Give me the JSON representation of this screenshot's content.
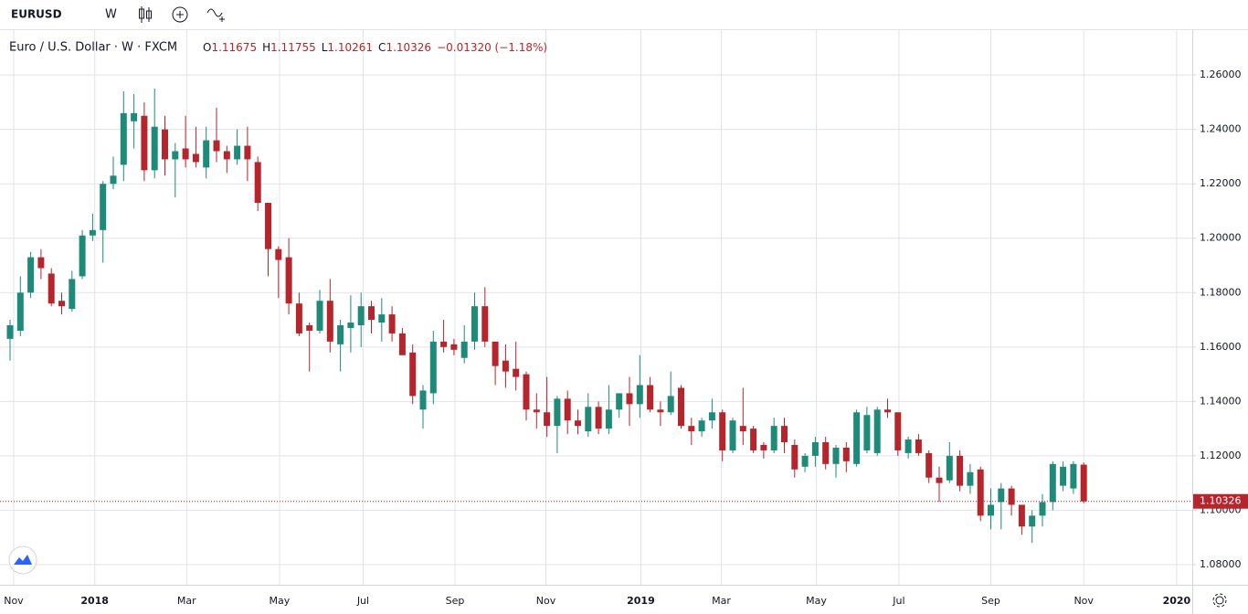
{
  "toolbar": {
    "symbol": "EURUSD",
    "interval": "W"
  },
  "chart_data": {
    "type": "candlestick",
    "title": "Euro / U.S. Dollar · W · FXCM",
    "ohlc_legend": [
      {
        "key": "O",
        "value": 1.11675
      },
      {
        "key": "H",
        "value": 1.11755
      },
      {
        "key": "L",
        "value": 1.10261
      },
      {
        "key": "C",
        "value": 1.10326
      }
    ],
    "change": "−0.01320 (−1.18%)",
    "up_color": "#1e8a78",
    "down_color": "#b5252b",
    "open": [
      1.163,
      1.166,
      1.18,
      1.193,
      1.187,
      1.177,
      1.174,
      1.186,
      1.201,
      1.203,
      1.22,
      1.227,
      1.243,
      1.245,
      1.225,
      1.24,
      1.229,
      1.233,
      1.231,
      1.226,
      1.236,
      1.232,
      1.229,
      1.234,
      1.228,
      1.213,
      1.196,
      1.193,
      1.176,
      1.168,
      1.166,
      1.177,
      1.161,
      1.167,
      1.168,
      1.175,
      1.169,
      1.172,
      1.165,
      1.158,
      1.137,
      1.143,
      1.162,
      1.161,
      1.156,
      1.162,
      1.175,
      1.162,
      1.155,
      1.152,
      1.15,
      1.137,
      1.136,
      1.131,
      1.141,
      1.133,
      1.129,
      1.138,
      1.13,
      1.137,
      1.143,
      1.139,
      1.146,
      1.137,
      1.136,
      1.145,
      1.131,
      1.129,
      1.133,
      1.136,
      1.122,
      1.131,
      1.13,
      1.124,
      1.122,
      1.131,
      1.124,
      1.116,
      1.12,
      1.125,
      1.117,
      1.123,
      1.117,
      1.122,
      1.121,
      1.137,
      1.136,
      1.121,
      1.126,
      1.121,
      1.112,
      1.111,
      1.12,
      1.109,
      1.115,
      1.098,
      1.103,
      1.108,
      1.102,
      1.094,
      1.098,
      1.103,
      1.109,
      1.108,
      1.11675
    ],
    "high": [
      1.17,
      1.186,
      1.195,
      1.196,
      1.189,
      1.18,
      1.188,
      1.203,
      1.209,
      1.221,
      1.23,
      1.254,
      1.253,
      1.25,
      1.255,
      1.245,
      1.235,
      1.245,
      1.241,
      1.241,
      1.248,
      1.234,
      1.24,
      1.241,
      1.23,
      1.213,
      1.197,
      1.2,
      1.18,
      1.169,
      1.181,
      1.185,
      1.17,
      1.179,
      1.18,
      1.177,
      1.178,
      1.175,
      1.167,
      1.161,
      1.146,
      1.166,
      1.17,
      1.163,
      1.168,
      1.18,
      1.182,
      1.162,
      1.161,
      1.162,
      1.151,
      1.143,
      1.149,
      1.142,
      1.144,
      1.137,
      1.143,
      1.14,
      1.146,
      1.143,
      1.149,
      1.157,
      1.149,
      1.14,
      1.151,
      1.146,
      1.134,
      1.134,
      1.141,
      1.137,
      1.134,
      1.145,
      1.131,
      1.125,
      1.134,
      1.134,
      1.126,
      1.121,
      1.127,
      1.127,
      1.124,
      1.125,
      1.137,
      1.138,
      1.138,
      1.141,
      1.136,
      1.127,
      1.128,
      1.122,
      1.116,
      1.125,
      1.122,
      1.117,
      1.116,
      1.108,
      1.11,
      1.109,
      1.102,
      1.1,
      1.106,
      1.118,
      1.118,
      1.118,
      1.11755
    ],
    "low": [
      1.155,
      1.164,
      1.178,
      1.185,
      1.175,
      1.172,
      1.173,
      1.185,
      1.199,
      1.191,
      1.218,
      1.221,
      1.233,
      1.221,
      1.222,
      1.223,
      1.215,
      1.226,
      1.226,
      1.222,
      1.228,
      1.224,
      1.227,
      1.221,
      1.21,
      1.186,
      1.178,
      1.172,
      1.164,
      1.151,
      1.165,
      1.158,
      1.151,
      1.158,
      1.16,
      1.165,
      1.162,
      1.162,
      1.157,
      1.139,
      1.13,
      1.139,
      1.158,
      1.157,
      1.154,
      1.159,
      1.16,
      1.146,
      1.145,
      1.144,
      1.133,
      1.13,
      1.127,
      1.121,
      1.128,
      1.128,
      1.127,
      1.128,
      1.128,
      1.134,
      1.131,
      1.134,
      1.136,
      1.131,
      1.135,
      1.13,
      1.124,
      1.127,
      1.13,
      1.118,
      1.121,
      1.124,
      1.121,
      1.119,
      1.121,
      1.121,
      1.112,
      1.114,
      1.116,
      1.115,
      1.112,
      1.114,
      1.116,
      1.121,
      1.12,
      1.134,
      1.12,
      1.119,
      1.12,
      1.11,
      1.103,
      1.11,
      1.107,
      1.106,
      1.096,
      1.093,
      1.093,
      1.098,
      1.091,
      1.088,
      1.094,
      1.1,
      1.107,
      1.106,
      1.10261
    ],
    "close": [
      1.168,
      1.18,
      1.193,
      1.189,
      1.176,
      1.175,
      1.185,
      1.201,
      1.203,
      1.22,
      1.223,
      1.246,
      1.246,
      1.225,
      1.241,
      1.229,
      1.232,
      1.229,
      1.228,
      1.236,
      1.232,
      1.229,
      1.234,
      1.229,
      1.213,
      1.196,
      1.192,
      1.176,
      1.165,
      1.166,
      1.177,
      1.162,
      1.168,
      1.169,
      1.175,
      1.17,
      1.172,
      1.165,
      1.157,
      1.142,
      1.144,
      1.162,
      1.16,
      1.159,
      1.162,
      1.175,
      1.162,
      1.153,
      1.151,
      1.149,
      1.137,
      1.136,
      1.131,
      1.141,
      1.133,
      1.131,
      1.138,
      1.13,
      1.137,
      1.143,
      1.139,
      1.146,
      1.137,
      1.136,
      1.142,
      1.131,
      1.129,
      1.133,
      1.136,
      1.122,
      1.133,
      1.129,
      1.122,
      1.122,
      1.131,
      1.125,
      1.115,
      1.12,
      1.125,
      1.117,
      1.123,
      1.118,
      1.136,
      1.135,
      1.137,
      1.136,
      1.122,
      1.126,
      1.121,
      1.112,
      1.11,
      1.12,
      1.109,
      1.114,
      1.098,
      1.102,
      1.108,
      1.102,
      1.094,
      1.098,
      1.103,
      1.117,
      1.116,
      1.117,
      1.10326
    ],
    "xticks": [
      {
        "value": 0.35,
        "label": "Nov"
      },
      {
        "value": 8.2,
        "label": "2018"
      },
      {
        "value": 17.1,
        "label": "Mar"
      },
      {
        "value": 26.1,
        "label": "May"
      },
      {
        "value": 34.2,
        "label": "Jul"
      },
      {
        "value": 43.1,
        "label": "Sep"
      },
      {
        "value": 51.9,
        "label": "Nov"
      },
      {
        "value": 61.1,
        "label": "2019"
      },
      {
        "value": 68.9,
        "label": "Mar"
      },
      {
        "value": 78.1,
        "label": "May"
      },
      {
        "value": 86.1,
        "label": "Jul"
      },
      {
        "value": 95.0,
        "label": "Sep"
      },
      {
        "value": 104.0,
        "label": "Nov"
      },
      {
        "value": 113.0,
        "label": "2020"
      }
    ],
    "ylim": [
      1.0726,
      1.2765
    ],
    "yticks": [
      {
        "value": 1.08,
        "label": "1.08000"
      },
      {
        "value": 1.1,
        "label": "1.10000"
      },
      {
        "value": 1.12,
        "label": "1.12000"
      },
      {
        "value": 1.14,
        "label": "1.14000"
      },
      {
        "value": 1.16,
        "label": "1.16000"
      },
      {
        "value": 1.18,
        "label": "1.18000"
      },
      {
        "value": 1.2,
        "label": "1.20000"
      },
      {
        "value": 1.22,
        "label": "1.22000"
      },
      {
        "value": 1.24,
        "label": "1.24000"
      },
      {
        "value": 1.26,
        "label": "1.26000"
      }
    ],
    "last_price": 1.10326,
    "grid": true
  }
}
